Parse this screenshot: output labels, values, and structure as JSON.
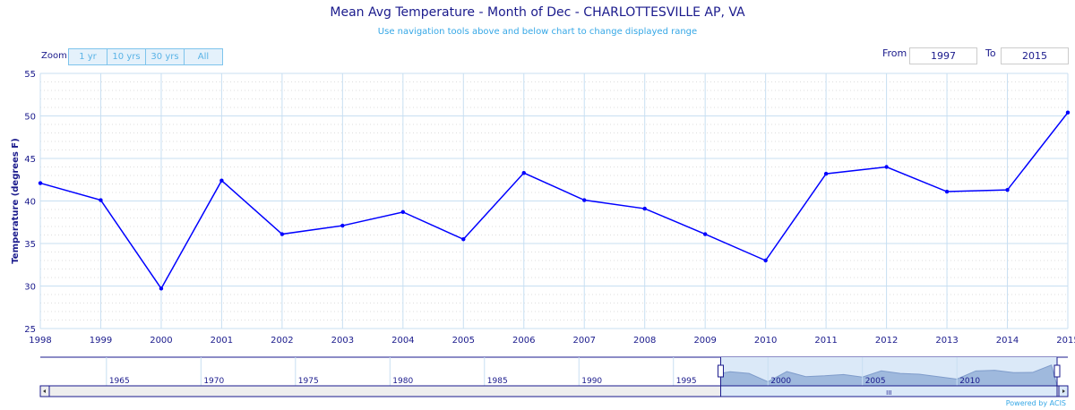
{
  "header": {
    "title": "Mean Avg Temperature - Month of Dec - CHARLOTTESVILLE AP, VA",
    "subtitle": "Use navigation tools above and below chart to change displayed range"
  },
  "zoom": {
    "label": "Zoom",
    "buttons": [
      "1 yr",
      "10 yrs",
      "30 yrs",
      "All"
    ]
  },
  "range": {
    "from_label": "From",
    "from": "1997",
    "to_label": "To",
    "to": "2015"
  },
  "navigator": {
    "labels": [
      "1965",
      "1970",
      "1975",
      "1980",
      "1985",
      "1990",
      "1995",
      "2000",
      "2005",
      "2010"
    ],
    "range": [
      1961.5,
      2015.3
    ],
    "selected": [
      1997.5,
      2015.3
    ]
  },
  "footer": {
    "powered": "Powered by ACIS"
  },
  "colors": {
    "line": "#0000ff",
    "text": "#1a1a8c",
    "grid": "#c8dff2"
  },
  "chart_data": {
    "type": "line",
    "title": "Mean Avg Temperature - Month of Dec - CHARLOTTESVILLE AP, VA",
    "xlabel": "",
    "ylabel": "Temperature (degrees F)",
    "ylim": [
      25,
      55
    ],
    "yticks": [
      "25",
      "30",
      "35",
      "40",
      "45",
      "50",
      "55"
    ],
    "x": [
      "1998",
      "1999",
      "2000",
      "2001",
      "2002",
      "2003",
      "2004",
      "2005",
      "2006",
      "2007",
      "2008",
      "2009",
      "2010",
      "2011",
      "2012",
      "2013",
      "2014",
      "2015"
    ],
    "values": [
      42.1,
      40.1,
      29.7,
      42.4,
      36.1,
      37.1,
      38.7,
      35.5,
      43.3,
      40.1,
      39.1,
      36.1,
      33.0,
      43.2,
      44.0,
      41.1,
      41.3,
      50.4
    ],
    "grid": true,
    "legend": "none"
  }
}
